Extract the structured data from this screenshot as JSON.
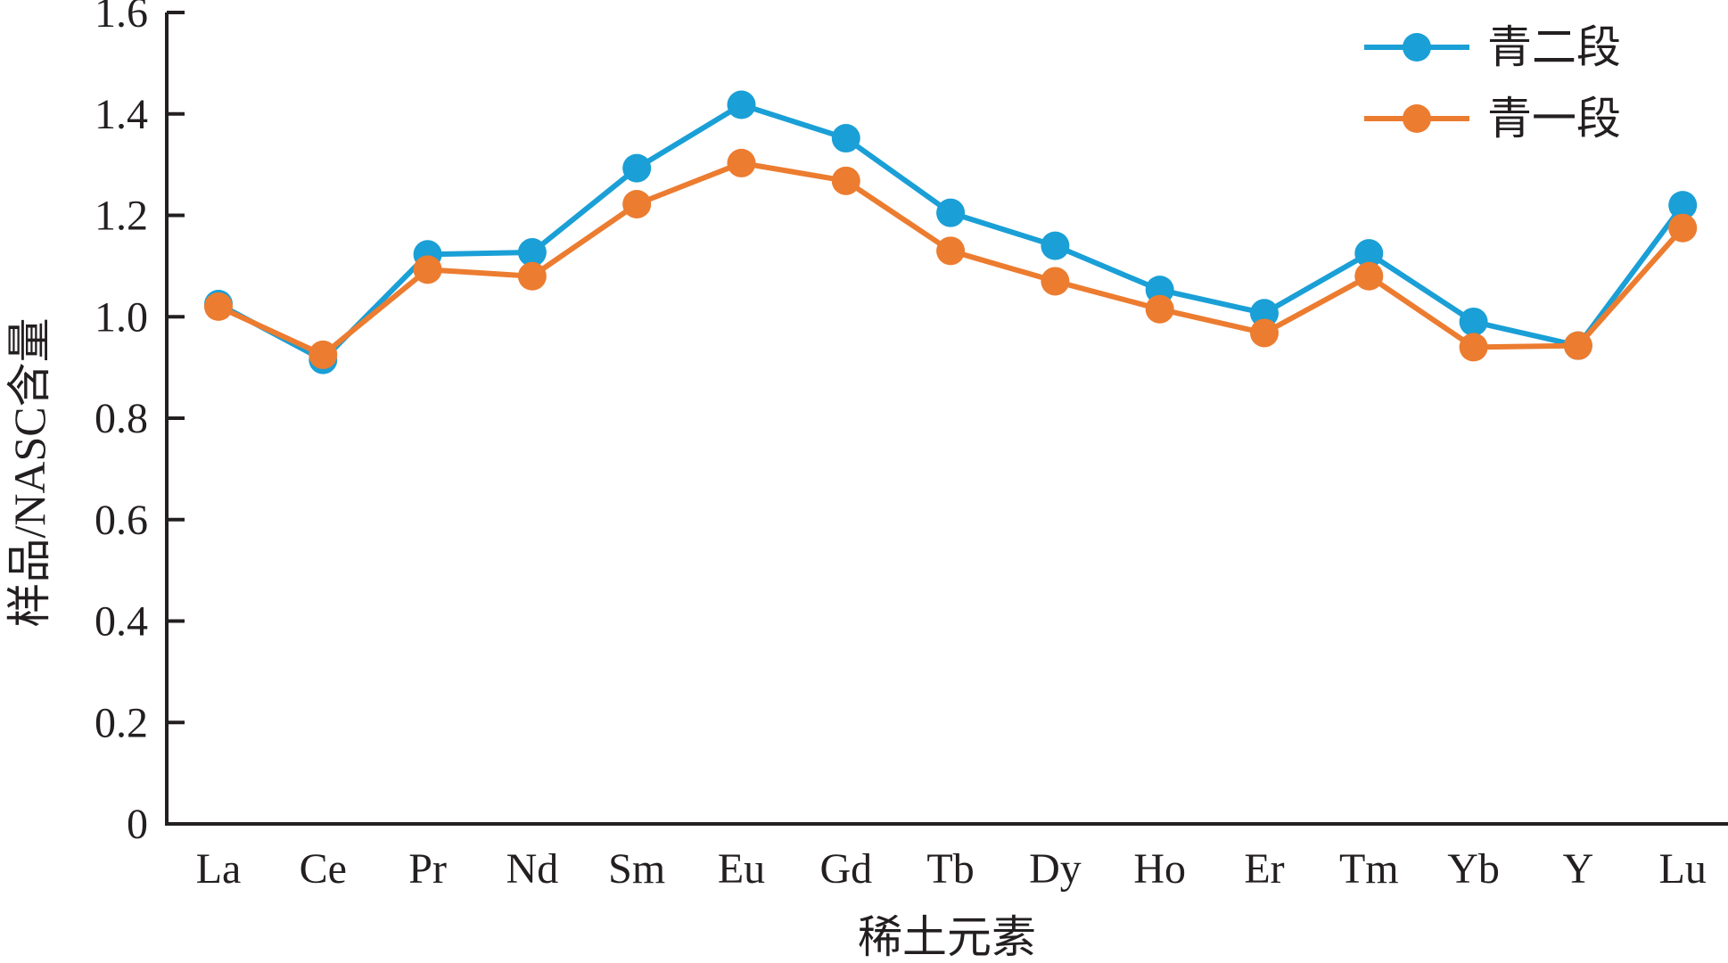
{
  "chart_data": {
    "type": "line",
    "xlabel": "稀土元素",
    "ylabel": "样品/NASC含量",
    "ylim": [
      0,
      1.6
    ],
    "yticks": [
      "0",
      "0.2",
      "0.4",
      "0.6",
      "0.8",
      "1.0",
      "1.2",
      "1.4",
      "1.6"
    ],
    "categories": [
      "La",
      "Ce",
      "Pr",
      "Nd",
      "Sm",
      "Eu",
      "Gd",
      "Tb",
      "Dy",
      "Ho",
      "Er",
      "Tm",
      "Yb",
      "Y",
      "Lu"
    ],
    "grid": false,
    "legend_position": "top-right",
    "series": [
      {
        "name": "青二段",
        "color": "#1a9fd6",
        "values": [
          1.025,
          0.915,
          1.123,
          1.127,
          1.293,
          1.418,
          1.352,
          1.205,
          1.14,
          1.053,
          1.007,
          1.125,
          0.99,
          0.943,
          1.22
        ]
      },
      {
        "name": "青一段",
        "color": "#ec7c30",
        "values": [
          1.02,
          0.925,
          1.093,
          1.08,
          1.222,
          1.303,
          1.268,
          1.13,
          1.07,
          1.015,
          0.968,
          1.08,
          0.94,
          0.943,
          1.175
        ]
      }
    ]
  }
}
